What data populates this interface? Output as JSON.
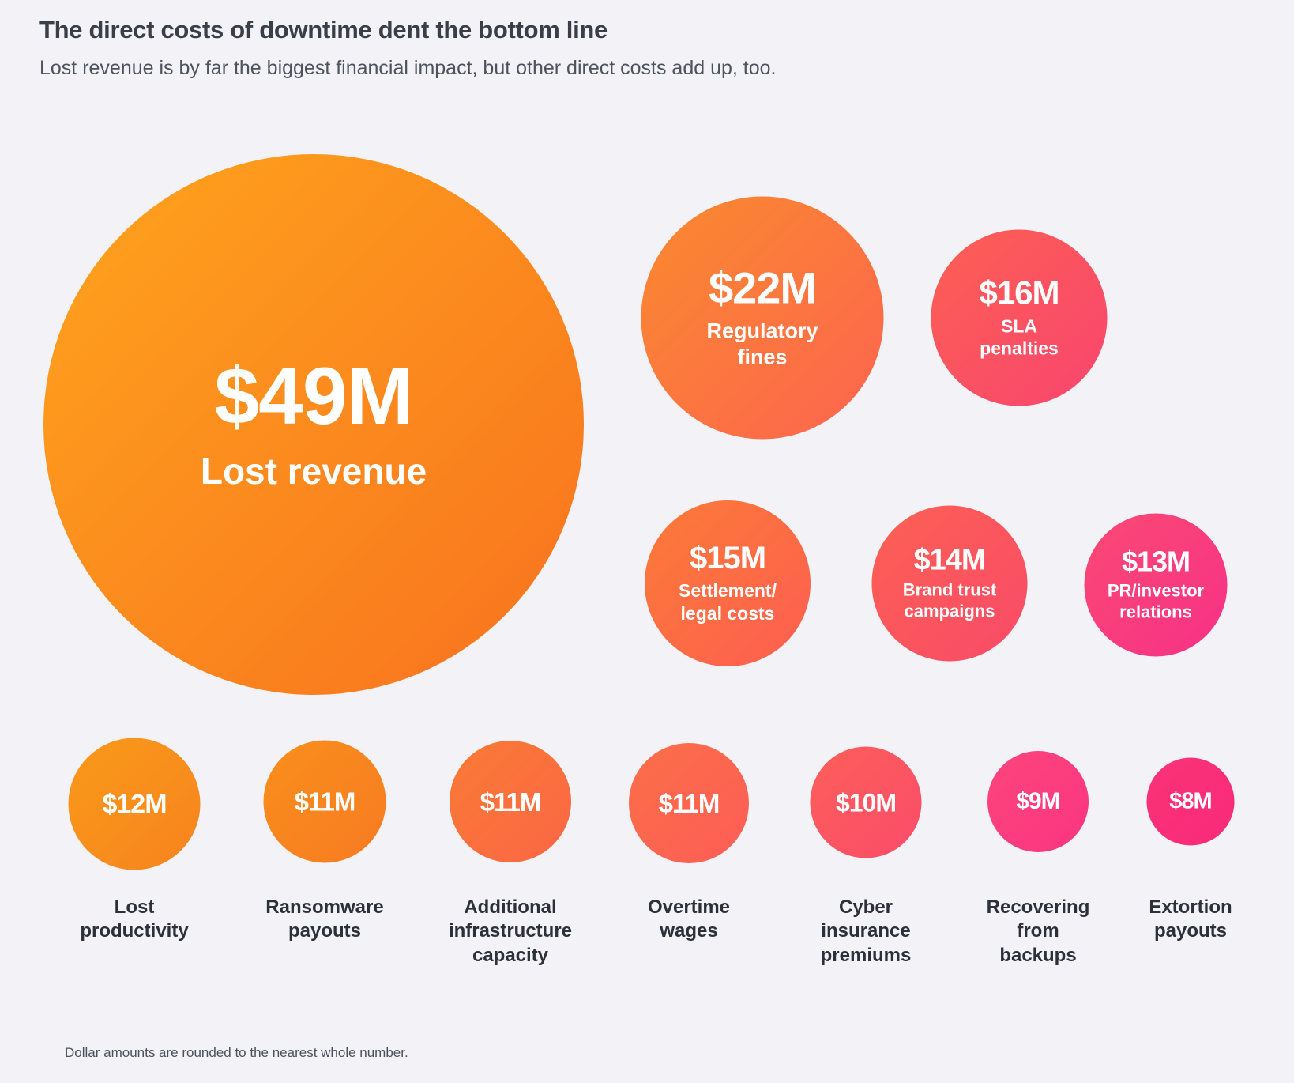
{
  "page": {
    "background": "#F2F2F7"
  },
  "chart_data": {
    "type": "bubble",
    "title": "The direct costs of downtime dent the bottom line",
    "subtitle": "Lost revenue is by far the biggest financial impact, but other direct costs add up, too.",
    "note": "Dollar amounts are rounded to the nearest whole number.",
    "value_format": "$<n>M",
    "bubbles": [
      {
        "amount": "$49M",
        "value": 49,
        "label": "Lost revenue",
        "label_position": "inside",
        "color_start": "#FFA41D",
        "color_end": "#F8721E"
      },
      {
        "amount": "$22M",
        "value": 22,
        "label": "Regulatory\nfines",
        "label_position": "inside",
        "color_start": "#FA8A2E",
        "color_end": "#FD6450"
      },
      {
        "amount": "$16M",
        "value": 16,
        "label": "SLA\npenalties",
        "label_position": "inside",
        "color_start": "#FC6052",
        "color_end": "#F94570"
      },
      {
        "amount": "$15M",
        "value": 15,
        "label": "Settlement/\nlegal costs",
        "label_position": "inside",
        "color_start": "#FB7B37",
        "color_end": "#FE5E51"
      },
      {
        "amount": "$14M",
        "value": 14,
        "label": "Brand trust\ncampaigns",
        "label_position": "inside",
        "color_start": "#FC6153",
        "color_end": "#FA4A69"
      },
      {
        "amount": "$13M",
        "value": 13,
        "label": "PR/investor\nrelations",
        "label_position": "inside",
        "color_start": "#FA4A73",
        "color_end": "#F73087"
      },
      {
        "amount": "$12M",
        "value": 12,
        "label": "Lost\nproductivity",
        "label_position": "below",
        "color_start": "#F99A19",
        "color_end": "#F8831F"
      },
      {
        "amount": "$11M",
        "value": 11,
        "label": "Ransomware\npayouts",
        "label_position": "below",
        "color_start": "#F98F1C",
        "color_end": "#F87B22"
      },
      {
        "amount": "$11M",
        "value": 11,
        "label": "Additional\ninfrastructure\ncapacity",
        "label_position": "below",
        "color_start": "#FA7B34",
        "color_end": "#FB6646"
      },
      {
        "amount": "$11M",
        "value": 11,
        "label": "Overtime\nwages",
        "label_position": "below",
        "color_start": "#FC6F48",
        "color_end": "#FD5D56"
      },
      {
        "amount": "$10M",
        "value": 10,
        "label": "Cyber\ninsurance\npremiums",
        "label_position": "below",
        "color_start": "#FC5F59",
        "color_end": "#FB4C6A"
      },
      {
        "amount": "$9M",
        "value": 9,
        "label": "Recovering\nfrom\nbackups",
        "label_position": "below",
        "color_start": "#FC457C",
        "color_end": "#FB3580"
      },
      {
        "amount": "$8M",
        "value": 8,
        "label": "Extortion\npayouts",
        "label_position": "below",
        "color_start": "#FA3374",
        "color_end": "#F92A7C"
      }
    ]
  }
}
